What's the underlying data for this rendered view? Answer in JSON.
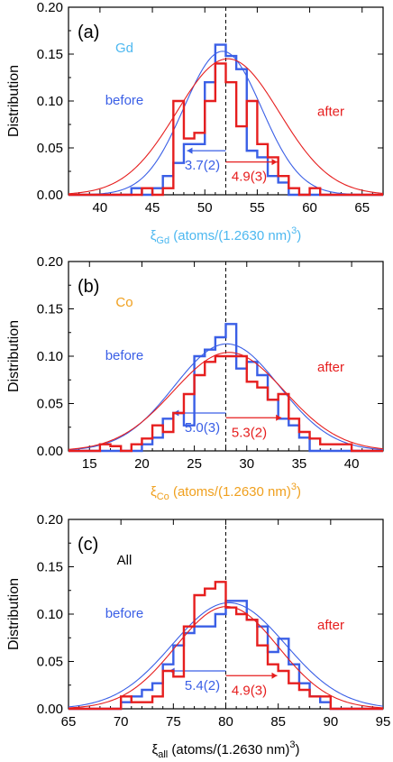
{
  "colors": {
    "before": "#3a5fe6",
    "after": "#e61e1e",
    "frame": "#000000"
  },
  "chart_data": [
    {
      "type": "histogram",
      "panel_label": "(a)",
      "element_label": "Gd",
      "element_color": "#4db8f0",
      "xlim": [
        37,
        67
      ],
      "ylim": [
        0,
        0.2
      ],
      "xticks": [
        40,
        45,
        50,
        55,
        60,
        65
      ],
      "yticks": [
        "0.00",
        "0.05",
        "0.10",
        "0.15",
        "0.20"
      ],
      "ylabel": "Distribution",
      "xlabel_symbol": "ξ",
      "xlabel_sub": "Gd",
      "xlabel_rest": " (atoms/(1.2630 nm)",
      "xlabel_sup": "3",
      "xlabel_close": ")",
      "xlabel_color": "#4db8f0",
      "mean_line_x": 52,
      "bin_edges": [
        43,
        44,
        45,
        46,
        47,
        48,
        49,
        50,
        51,
        52,
        53,
        54,
        55,
        56,
        57,
        58,
        59,
        60,
        61,
        62
      ],
      "series": [
        {
          "name": "before",
          "hist": [
            0.007,
            0,
            0.007,
            0.02,
            0.034,
            0.054,
            0.054,
            0.12,
            0.16,
            0.148,
            0.134,
            0.047,
            0.04,
            0.02,
            0.013,
            0,
            0,
            0,
            0
          ],
          "gauss_mean": 51.7,
          "gauss_sigma": 3.7,
          "gauss_peak": 0.153,
          "width_value": "3.7(2)",
          "arrow_y": 0.047
        },
        {
          "name": "after",
          "hist": [
            0,
            0.007,
            0,
            0.007,
            0.1,
            0.06,
            0.066,
            0.1,
            0.14,
            0.12,
            0.073,
            0.1,
            0.054,
            0.04,
            0.02,
            0.007,
            0,
            0.007,
            0
          ],
          "gauss_mean": 52.2,
          "gauss_sigma": 4.9,
          "gauss_peak": 0.145,
          "width_value": "4.9(3)",
          "arrow_y": 0.035
        }
      ]
    },
    {
      "type": "histogram",
      "panel_label": "(b)",
      "element_label": "Co",
      "element_color": "#f0a01e",
      "xlim": [
        13,
        43
      ],
      "ylim": [
        0,
        0.2
      ],
      "xticks": [
        15,
        20,
        25,
        30,
        35,
        40
      ],
      "yticks": [
        "0.00",
        "0.05",
        "0.10",
        "0.15",
        "0.20"
      ],
      "ylabel": "Distribution",
      "xlabel_symbol": "ξ",
      "xlabel_sub": "Co",
      "xlabel_rest": " (atoms/(1.2630 nm)",
      "xlabel_sup": "3",
      "xlabel_close": ")",
      "xlabel_color": "#f0a01e",
      "mean_line_x": 28,
      "bin_edges": [
        16,
        17,
        18,
        19,
        20,
        21,
        22,
        23,
        24,
        25,
        26,
        27,
        28,
        29,
        30,
        31,
        32,
        33,
        34,
        35,
        36,
        37,
        38,
        39,
        40
      ],
      "series": [
        {
          "name": "before",
          "hist": [
            0,
            0,
            0,
            0,
            0.007,
            0.014,
            0.034,
            0.04,
            0.027,
            0.1,
            0.107,
            0.12,
            0.134,
            0.087,
            0.094,
            0.08,
            0.054,
            0.034,
            0.027,
            0.014,
            0,
            0,
            0,
            0
          ],
          "gauss_mean": 28.1,
          "gauss_sigma": 5.0,
          "gauss_peak": 0.113,
          "width_value": "5.0(3)",
          "arrow_y": 0.04
        },
        {
          "name": "after",
          "hist": [
            0.007,
            0.005,
            0,
            0.007,
            0.013,
            0.027,
            0.02,
            0.04,
            0.06,
            0.08,
            0.094,
            0.1,
            0.1,
            0.1,
            0.073,
            0.067,
            0.054,
            0.06,
            0.034,
            0.02,
            0.013,
            0.007,
            0.007,
            0.007
          ],
          "gauss_mean": 28.3,
          "gauss_sigma": 5.3,
          "gauss_peak": 0.104,
          "width_value": "5.3(2)",
          "arrow_y": 0.035
        }
      ]
    },
    {
      "type": "histogram",
      "panel_label": "(c)",
      "element_label": "All",
      "element_color": "#000000",
      "xlim": [
        65,
        95
      ],
      "ylim": [
        0,
        0.2
      ],
      "xticks": [
        65,
        70,
        75,
        80,
        85,
        90,
        95
      ],
      "yticks": [
        "0.00",
        "0.05",
        "0.10",
        "0.15",
        "0.20"
      ],
      "ylabel": "Distribution",
      "xlabel_symbol": "ξ",
      "xlabel_sub": "all",
      "xlabel_rest": " (atoms/(1.2630 nm)",
      "xlabel_sup": "3",
      "xlabel_close": ")",
      "xlabel_color": "#000000",
      "mean_line_x": 80,
      "bin_edges": [
        70,
        71,
        72,
        73,
        74,
        75,
        76,
        77,
        78,
        79,
        80,
        81,
        82,
        83,
        84,
        85,
        86,
        87,
        88,
        89,
        90,
        91
      ],
      "series": [
        {
          "name": "before",
          "hist": [
            0.007,
            0.013,
            0.02,
            0.027,
            0.047,
            0.067,
            0.08,
            0.087,
            0.087,
            0.1,
            0.114,
            0.114,
            0.094,
            0.087,
            0.06,
            0.074,
            0.047,
            0.027,
            0.013,
            0.007,
            0
          ],
          "gauss_mean": 80.3,
          "gauss_sigma": 5.4,
          "gauss_peak": 0.112,
          "width_value": "5.4(2)",
          "arrow_y": 0.04
        },
        {
          "name": "after",
          "hist": [
            0.013,
            0.007,
            0.007,
            0.013,
            0.04,
            0.034,
            0.087,
            0.12,
            0.127,
            0.134,
            0.107,
            0.1,
            0.094,
            0.067,
            0.047,
            0.04,
            0.027,
            0.02,
            0.013,
            0.013,
            0
          ],
          "gauss_mean": 80.1,
          "gauss_sigma": 4.9,
          "gauss_peak": 0.108,
          "width_value": "4.9(3)",
          "arrow_y": 0.035
        }
      ]
    }
  ]
}
